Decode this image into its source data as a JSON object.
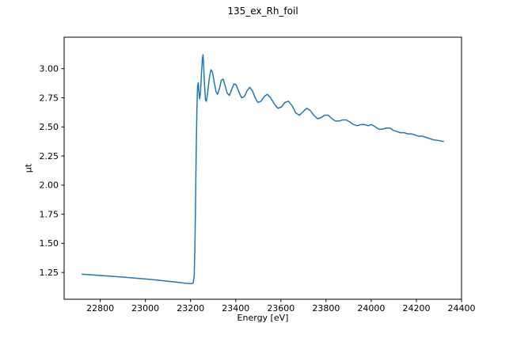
{
  "chart_data": {
    "type": "line",
    "title": "135_ex_Rh_foil",
    "xlabel": "Energy [eV]",
    "ylabel": "μt",
    "xlim": [
      22640,
      24400
    ],
    "ylim": [
      1.02,
      3.27
    ],
    "xticks": [
      22800,
      23000,
      23200,
      23400,
      23600,
      23800,
      24000,
      24200,
      24400
    ],
    "xtick_labels": [
      "22800",
      "23000",
      "23200",
      "23400",
      "23600",
      "23800",
      "24000",
      "24200",
      "24400"
    ],
    "yticks": [
      1.25,
      1.5,
      1.75,
      2.0,
      2.25,
      2.5,
      2.75,
      3.0
    ],
    "ytick_labels": [
      "1.25",
      "1.50",
      "1.75",
      "2.00",
      "2.25",
      "2.50",
      "2.75",
      "3.00"
    ],
    "grid": false,
    "legend_position": "none",
    "line_color": "#1f77b4",
    "axis_color": "#000000",
    "background_color": "#ffffff",
    "series": [
      {
        "name": "135_ex_Rh_foil",
        "color": "#1f77b4",
        "points": [
          [
            22720,
            1.235
          ],
          [
            22760,
            1.23
          ],
          [
            22800,
            1.224
          ],
          [
            22850,
            1.217
          ],
          [
            22900,
            1.21
          ],
          [
            22950,
            1.202
          ],
          [
            23000,
            1.194
          ],
          [
            23050,
            1.185
          ],
          [
            23100,
            1.175
          ],
          [
            23140,
            1.166
          ],
          [
            23170,
            1.159
          ],
          [
            23190,
            1.155
          ],
          [
            23205,
            1.154
          ],
          [
            23212,
            1.16
          ],
          [
            23216,
            1.22
          ],
          [
            23219,
            1.45
          ],
          [
            23222,
            1.85
          ],
          [
            23225,
            2.3
          ],
          [
            23228,
            2.65
          ],
          [
            23231,
            2.85
          ],
          [
            23234,
            2.88
          ],
          [
            23237,
            2.8
          ],
          [
            23240,
            2.74
          ],
          [
            23244,
            2.8
          ],
          [
            23248,
            2.95
          ],
          [
            23252,
            3.08
          ],
          [
            23255,
            3.12
          ],
          [
            23258,
            3.02
          ],
          [
            23262,
            2.85
          ],
          [
            23266,
            2.73
          ],
          [
            23270,
            2.72
          ],
          [
            23276,
            2.8
          ],
          [
            23283,
            2.92
          ],
          [
            23290,
            2.99
          ],
          [
            23297,
            2.97
          ],
          [
            23305,
            2.88
          ],
          [
            23313,
            2.8
          ],
          [
            23320,
            2.78
          ],
          [
            23328,
            2.83
          ],
          [
            23336,
            2.9
          ],
          [
            23344,
            2.91
          ],
          [
            23352,
            2.86
          ],
          [
            23362,
            2.79
          ],
          [
            23372,
            2.77
          ],
          [
            23382,
            2.82
          ],
          [
            23392,
            2.87
          ],
          [
            23402,
            2.86
          ],
          [
            23414,
            2.8
          ],
          [
            23426,
            2.75
          ],
          [
            23438,
            2.76
          ],
          [
            23450,
            2.81
          ],
          [
            23462,
            2.84
          ],
          [
            23474,
            2.81
          ],
          [
            23486,
            2.75
          ],
          [
            23498,
            2.71
          ],
          [
            23512,
            2.72
          ],
          [
            23526,
            2.76
          ],
          [
            23540,
            2.78
          ],
          [
            23554,
            2.75
          ],
          [
            23570,
            2.7
          ],
          [
            23586,
            2.66
          ],
          [
            23602,
            2.67
          ],
          [
            23618,
            2.71
          ],
          [
            23634,
            2.72
          ],
          [
            23650,
            2.68
          ],
          [
            23666,
            2.62
          ],
          [
            23682,
            2.6
          ],
          [
            23698,
            2.63
          ],
          [
            23714,
            2.66
          ],
          [
            23730,
            2.64
          ],
          [
            23746,
            2.6
          ],
          [
            23762,
            2.57
          ],
          [
            23778,
            2.58
          ],
          [
            23794,
            2.6
          ],
          [
            23810,
            2.6
          ],
          [
            23826,
            2.57
          ],
          [
            23842,
            2.55
          ],
          [
            23858,
            2.55
          ],
          [
            23874,
            2.56
          ],
          [
            23890,
            2.56
          ],
          [
            23906,
            2.54
          ],
          [
            23922,
            2.52
          ],
          [
            23938,
            2.51
          ],
          [
            23954,
            2.52
          ],
          [
            23970,
            2.52
          ],
          [
            23986,
            2.51
          ],
          [
            24002,
            2.52
          ],
          [
            24018,
            2.5
          ],
          [
            24034,
            2.48
          ],
          [
            24050,
            2.48
          ],
          [
            24066,
            2.49
          ],
          [
            24082,
            2.49
          ],
          [
            24098,
            2.47
          ],
          [
            24114,
            2.46
          ],
          [
            24130,
            2.45
          ],
          [
            24146,
            2.45
          ],
          [
            24162,
            2.44
          ],
          [
            24178,
            2.44
          ],
          [
            24194,
            2.43
          ],
          [
            24210,
            2.42
          ],
          [
            24226,
            2.42
          ],
          [
            24242,
            2.41
          ],
          [
            24258,
            2.4
          ],
          [
            24274,
            2.39
          ],
          [
            24290,
            2.385
          ],
          [
            24306,
            2.38
          ],
          [
            24320,
            2.375
          ]
        ]
      }
    ]
  }
}
